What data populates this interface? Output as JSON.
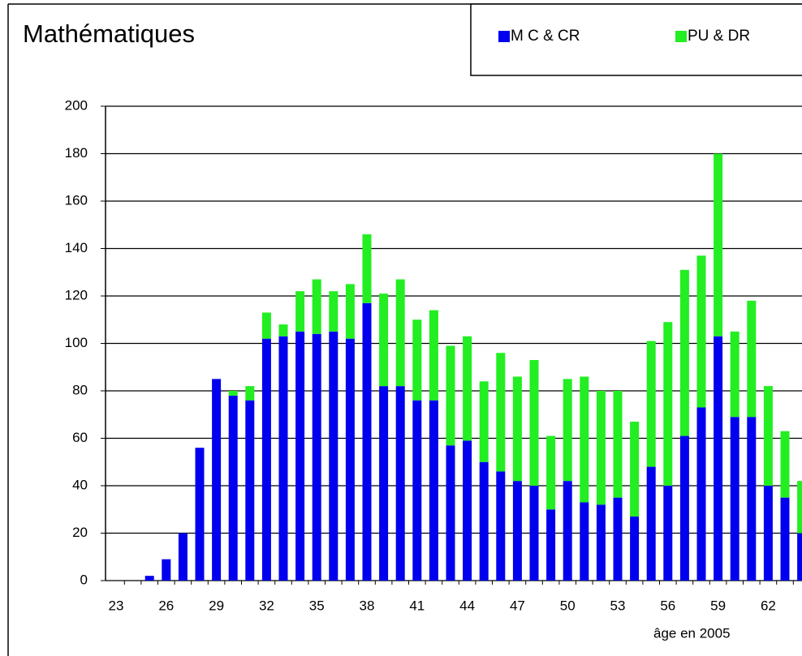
{
  "chart_data": {
    "type": "bar",
    "stacked": true,
    "title": "Mathématiques",
    "x_label": "âge en 2005",
    "categories": [
      "23",
      null,
      null,
      "26",
      null,
      null,
      "29",
      null,
      null,
      "32",
      null,
      null,
      "35",
      null,
      null,
      "38",
      null,
      null,
      "41",
      null,
      null,
      "44",
      null,
      null,
      "47",
      null,
      null,
      "50",
      null,
      null,
      "53",
      null,
      null,
      "56",
      null,
      null,
      "59",
      null,
      null,
      "62",
      null,
      null
    ],
    "series": [
      {
        "name": "M C & CR",
        "color": "#0000ee",
        "values": [
          0,
          0,
          2,
          9,
          20,
          56,
          85,
          78,
          76,
          102,
          103,
          105,
          104,
          105,
          102,
          117,
          82,
          82,
          76,
          76,
          57,
          59,
          50,
          46,
          42,
          40,
          30,
          42,
          33,
          32,
          35,
          27,
          48,
          40,
          61,
          73,
          103,
          69,
          69,
          40,
          35,
          20
        ]
      },
      {
        "name": "PU & DR",
        "color": "#22ee22",
        "values": [
          0,
          0,
          0,
          0,
          0,
          0,
          0,
          2,
          6,
          11,
          5,
          17,
          23,
          17,
          23,
          29,
          39,
          45,
          34,
          38,
          42,
          44,
          34,
          50,
          44,
          53,
          31,
          43,
          53,
          48,
          45,
          40,
          53,
          69,
          70,
          64,
          77,
          36,
          49,
          42,
          28,
          22
        ]
      }
    ],
    "ylim": [
      0,
      200
    ],
    "yticks": [
      0,
      20,
      40,
      60,
      80,
      100,
      120,
      140,
      160,
      180,
      200
    ],
    "grid": true,
    "legend": "top-right"
  }
}
